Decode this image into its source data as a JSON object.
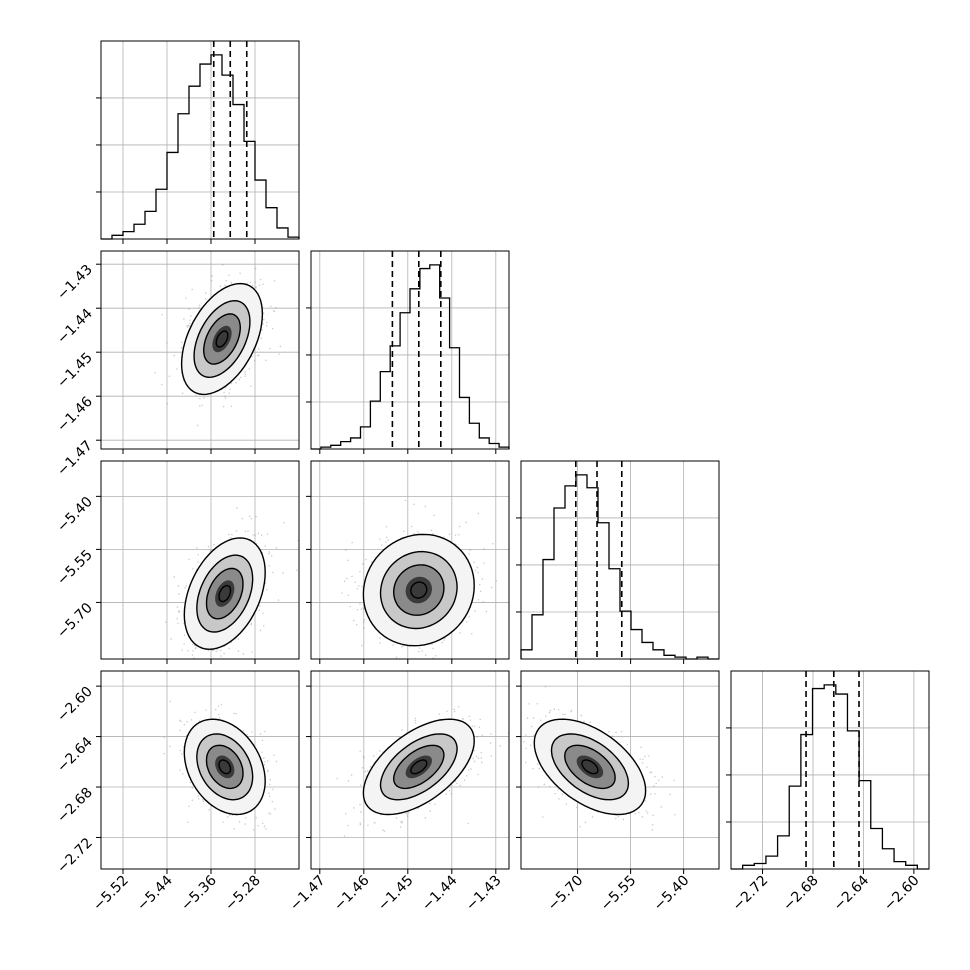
{
  "chart_data": [
    {
      "type": "histogram",
      "param": 0,
      "range": [
        -5.56,
        -5.2
      ],
      "ticks": [
        -5.52,
        -5.44,
        -5.36,
        -5.28
      ],
      "tick_labels": [
        "−5.52",
        "−5.44",
        "−5.36",
        "−5.28"
      ],
      "quantiles": [
        -5.355,
        -5.325,
        -5.295
      ],
      "density": [
        0.0,
        0.02,
        0.04,
        0.08,
        0.15,
        0.27,
        0.47,
        0.68,
        0.83,
        0.95,
        1.0,
        0.89,
        0.73,
        0.53,
        0.32,
        0.17,
        0.06,
        0.01
      ]
    },
    {
      "type": "histogram",
      "param": 1,
      "range": [
        -1.472,
        -1.427
      ],
      "ticks": [
        -1.47,
        -1.46,
        -1.45,
        -1.44,
        -1.43
      ],
      "tick_labels": [
        "−1.47",
        "−1.46",
        "−1.45",
        "−1.44",
        "−1.43"
      ],
      "quantiles": [
        -1.4535,
        -1.4475,
        -1.4425
      ],
      "density": [
        0.0,
        0.01,
        0.02,
        0.04,
        0.06,
        0.12,
        0.26,
        0.42,
        0.56,
        0.74,
        0.87,
        0.98,
        1.0,
        0.82,
        0.55,
        0.28,
        0.14,
        0.06,
        0.03,
        0.01
      ]
    },
    {
      "type": "histogram",
      "param": 2,
      "range": [
        -5.86,
        -5.3
      ],
      "ticks": [
        -5.7,
        -5.55,
        -5.4
      ],
      "tick_labels": [
        "−5.70",
        "−5.55",
        "−5.40"
      ],
      "quantiles": [
        -5.705,
        -5.645,
        -5.575
      ],
      "density": [
        0.05,
        0.24,
        0.54,
        0.82,
        0.94,
        1.0,
        0.93,
        0.74,
        0.49,
        0.26,
        0.16,
        0.09,
        0.05,
        0.02,
        0.01,
        0.0,
        0.01,
        0.0
      ]
    },
    {
      "type": "histogram",
      "param": 3,
      "range": [
        -2.745,
        -2.588
      ],
      "ticks": [
        -2.72,
        -2.68,
        -2.64,
        -2.6
      ],
      "tick_labels": [
        "−2.72",
        "−2.68",
        "−2.64",
        "−2.60"
      ],
      "quantiles": [
        -2.6855,
        -2.6635,
        -2.6435
      ],
      "density": [
        0.0,
        0.02,
        0.03,
        0.07,
        0.18,
        0.45,
        0.73,
        0.98,
        1.0,
        0.95,
        0.75,
        0.48,
        0.22,
        0.11,
        0.04,
        0.02,
        0.0
      ]
    },
    {
      "type": "scatter",
      "panel": "1,0",
      "x_param": 0,
      "y_param": 1,
      "y_range": [
        -1.472,
        -1.427
      ],
      "y_ticks": [
        -1.43,
        -1.44,
        -1.45,
        -1.46,
        -1.47
      ],
      "y_tick_labels": [
        "−1.43",
        "−1.44",
        "−1.45",
        "−1.46",
        "−1.47"
      ],
      "center": [
        -5.34,
        -1.447
      ],
      "sigma": [
        0.035,
        0.006
      ],
      "corr": 0.45
    },
    {
      "type": "scatter",
      "panel": "2,0",
      "x_param": 0,
      "y_param": 2,
      "y_range": [
        -5.86,
        -5.3
      ],
      "y_ticks": [
        -5.4,
        -5.55,
        -5.7
      ],
      "y_tick_labels": [
        "−5.40",
        "−5.55",
        "−5.70"
      ],
      "center": [
        -5.335,
        -5.675
      ],
      "sigma": [
        0.035,
        0.075
      ],
      "corr": 0.38
    },
    {
      "type": "scatter",
      "panel": "2,1",
      "x_param": 1,
      "y_param": 2,
      "center": [
        -1.4475,
        -5.665
      ],
      "sigma": [
        0.006,
        0.075
      ],
      "corr": 0.08
    },
    {
      "type": "scatter",
      "panel": "3,0",
      "x_param": 0,
      "y_param": 3,
      "y_range": [
        -2.745,
        -2.588
      ],
      "y_ticks": [
        -2.6,
        -2.64,
        -2.68,
        -2.72
      ],
      "y_tick_labels": [
        "−2.60",
        "−2.64",
        "−2.68",
        "−2.72"
      ],
      "center": [
        -5.335,
        -2.664
      ],
      "sigma": [
        0.035,
        0.018
      ],
      "corr": -0.3
    },
    {
      "type": "scatter",
      "panel": "3,1",
      "x_param": 1,
      "y_param": 3,
      "center": [
        -1.4475,
        -2.664
      ],
      "sigma": [
        0.006,
        0.018
      ],
      "corr": 0.55
    },
    {
      "type": "scatter",
      "panel": "3,2",
      "x_param": 2,
      "y_param": 3,
      "center": [
        -5.665,
        -2.664
      ],
      "sigma": [
        0.075,
        0.018
      ],
      "corr": -0.5
    }
  ]
}
